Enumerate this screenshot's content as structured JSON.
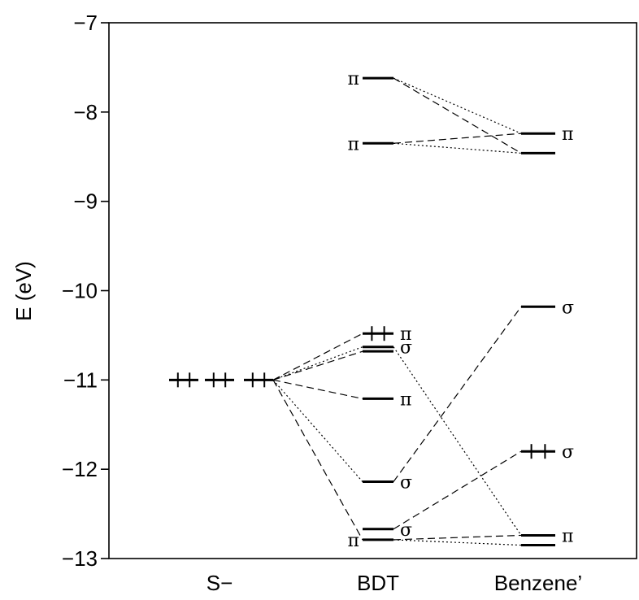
{
  "chart_data": {
    "type": "energy-level-diagram",
    "ylabel": "E (eV)",
    "ylim": [
      -13,
      -7
    ],
    "yticks": [
      -7,
      -8,
      -9,
      -10,
      -11,
      -12,
      -13
    ],
    "ytick_labels": [
      "−7",
      "−8",
      "−9",
      "−10",
      "−11",
      "−12",
      "−13"
    ],
    "categories": [
      "S−",
      "BDT",
      "Benzene’"
    ],
    "levels": [
      {
        "id": "s1",
        "column": "S−",
        "energy": -11.0,
        "slot": 0,
        "occupied": true,
        "label": ""
      },
      {
        "id": "s2",
        "column": "S−",
        "energy": -11.0,
        "slot": 1,
        "occupied": true,
        "label": ""
      },
      {
        "id": "s3",
        "column": "S−",
        "energy": -11.0,
        "slot": 2,
        "occupied": true,
        "label": ""
      },
      {
        "id": "b1",
        "column": "BDT",
        "energy": -7.62,
        "occupied": false,
        "label": "π",
        "label_side": "left"
      },
      {
        "id": "b2",
        "column": "BDT",
        "energy": -8.35,
        "occupied": false,
        "label": "π",
        "label_side": "left"
      },
      {
        "id": "b3",
        "column": "BDT",
        "energy": -10.48,
        "occupied": true,
        "label": "π",
        "label_side": "right"
      },
      {
        "id": "b4",
        "column": "BDT",
        "energy": -10.63,
        "occupied": false,
        "label": "σ",
        "label_side": "right"
      },
      {
        "id": "b5",
        "column": "BDT",
        "energy": -10.68,
        "occupied": false,
        "label": "",
        "label_side": "right"
      },
      {
        "id": "b6",
        "column": "BDT",
        "energy": -11.21,
        "occupied": false,
        "label": "π",
        "label_side": "right"
      },
      {
        "id": "b7",
        "column": "BDT",
        "energy": -12.14,
        "occupied": false,
        "label": "σ",
        "label_side": "right"
      },
      {
        "id": "b8",
        "column": "BDT",
        "energy": -12.67,
        "occupied": false,
        "label": "σ",
        "label_side": "right"
      },
      {
        "id": "b9",
        "column": "BDT",
        "energy": -12.79,
        "occupied": false,
        "label": "π",
        "label_side": "left"
      },
      {
        "id": "z1",
        "column": "Benzene’",
        "energy": -8.24,
        "occupied": false,
        "label": "π",
        "label_side": "right"
      },
      {
        "id": "z2",
        "column": "Benzene’",
        "energy": -8.46,
        "occupied": false,
        "label": "",
        "label_side": "right"
      },
      {
        "id": "z3",
        "column": "Benzene’",
        "energy": -10.18,
        "occupied": false,
        "label": "σ",
        "label_side": "right"
      },
      {
        "id": "z4",
        "column": "Benzene’",
        "energy": -11.8,
        "occupied": true,
        "label": "σ",
        "label_side": "right"
      },
      {
        "id": "z5",
        "column": "Benzene’",
        "energy": -12.74,
        "occupied": false,
        "label": "π",
        "label_side": "right"
      },
      {
        "id": "z6",
        "column": "Benzene’",
        "energy": -12.85,
        "occupied": false,
        "label": "",
        "label_side": "right"
      }
    ],
    "connections": [
      {
        "from": "s3",
        "to": "b3",
        "style": "dashed"
      },
      {
        "from": "s3",
        "to": "b4",
        "style": "dotted"
      },
      {
        "from": "s3",
        "to": "b5",
        "style": "dashed"
      },
      {
        "from": "s3",
        "to": "b6",
        "style": "dashed"
      },
      {
        "from": "s3",
        "to": "b7",
        "style": "dotted"
      },
      {
        "from": "s3",
        "to": "b9",
        "style": "dashed"
      },
      {
        "from": "b1",
        "to": "z1",
        "style": "dotted"
      },
      {
        "from": "b1",
        "to": "z2",
        "style": "dashed"
      },
      {
        "from": "b2",
        "to": "z1",
        "style": "dashed"
      },
      {
        "from": "b2",
        "to": "z2",
        "style": "dotted"
      },
      {
        "from": "b4",
        "to": "z5",
        "style": "dotted"
      },
      {
        "from": "b7",
        "to": "z3",
        "style": "dashed"
      },
      {
        "from": "b8",
        "to": "z4",
        "style": "dashed"
      },
      {
        "from": "b9",
        "to": "z5",
        "style": "dashed"
      },
      {
        "from": "b9",
        "to": "z6",
        "style": "dotted"
      }
    ],
    "grid": false,
    "legend": "none"
  }
}
